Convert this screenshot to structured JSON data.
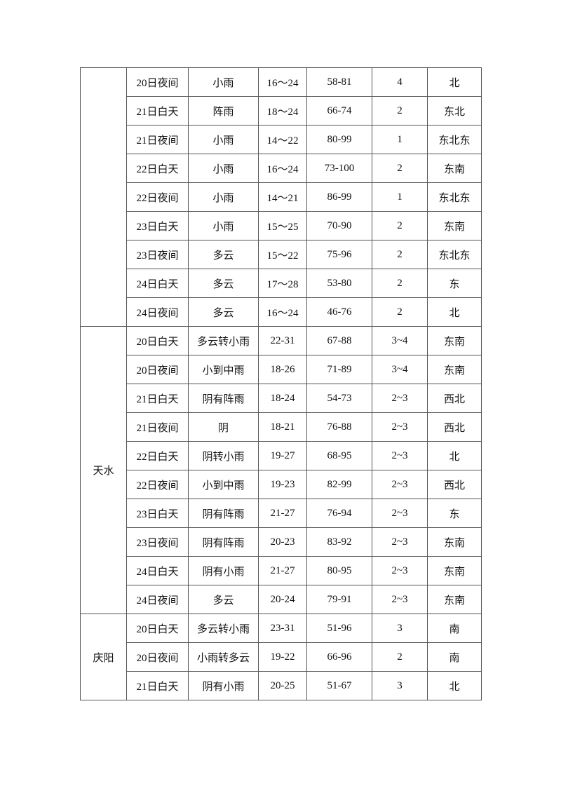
{
  "groups": [
    {
      "city": "",
      "rows": [
        [
          "20日夜间",
          "小雨",
          "16～24",
          "58-81",
          "4",
          "北"
        ],
        [
          "21日白天",
          "阵雨",
          "18～24",
          "66-74",
          "2",
          "东北"
        ],
        [
          "21日夜间",
          "小雨",
          "14～22",
          "80-99",
          "1",
          "东北东"
        ],
        [
          "22日白天",
          "小雨",
          "16～24",
          "73-100",
          "2",
          "东南"
        ],
        [
          "22日夜间",
          "小雨",
          "14～21",
          "86-99",
          "1",
          "东北东"
        ],
        [
          "23日白天",
          "小雨",
          "15～25",
          "70-90",
          "2",
          "东南"
        ],
        [
          "23日夜间",
          "多云",
          "15～22",
          "75-96",
          "2",
          "东北东"
        ],
        [
          "24日白天",
          "多云",
          "17～28",
          "53-80",
          "2",
          "东"
        ],
        [
          "24日夜间",
          "多云",
          "16～24",
          "46-76",
          "2",
          "北"
        ]
      ]
    },
    {
      "city": "天水",
      "rows": [
        [
          "20日白天",
          "多云转小雨",
          "22-31",
          "67-88",
          "3~4",
          "东南"
        ],
        [
          "20日夜间",
          "小到中雨",
          "18-26",
          "71-89",
          "3~4",
          "东南"
        ],
        [
          "21日白天",
          "阴有阵雨",
          "18-24",
          "54-73",
          "2~3",
          "西北"
        ],
        [
          "21日夜间",
          "阴",
          "18-21",
          "76-88",
          "2~3",
          "西北"
        ],
        [
          "22日白天",
          "阴转小雨",
          "19-27",
          "68-95",
          "2~3",
          "北"
        ],
        [
          "22日夜间",
          "小到中雨",
          "19-23",
          "82-99",
          "2~3",
          "西北"
        ],
        [
          "23日白天",
          "阴有阵雨",
          "21-27",
          "76-94",
          "2~3",
          "东"
        ],
        [
          "23日夜间",
          "阴有阵雨",
          "20-23",
          "83-92",
          "2~3",
          "东南"
        ],
        [
          "24日白天",
          "阴有小雨",
          "21-27",
          "80-95",
          "2~3",
          "东南"
        ],
        [
          "24日夜间",
          "多云",
          "20-24",
          "79-91",
          "2~3",
          "东南"
        ]
      ]
    },
    {
      "city": "庆阳",
      "rows": [
        [
          "20日白天",
          "多云转小雨",
          "23-31",
          "51-96",
          "3",
          "南"
        ],
        [
          "20日夜间",
          "小雨转多云",
          "19-22",
          "66-96",
          "2",
          "南"
        ],
        [
          "21日白天",
          "阴有小雨",
          "20-25",
          "51-67",
          "3",
          "北"
        ]
      ]
    }
  ]
}
